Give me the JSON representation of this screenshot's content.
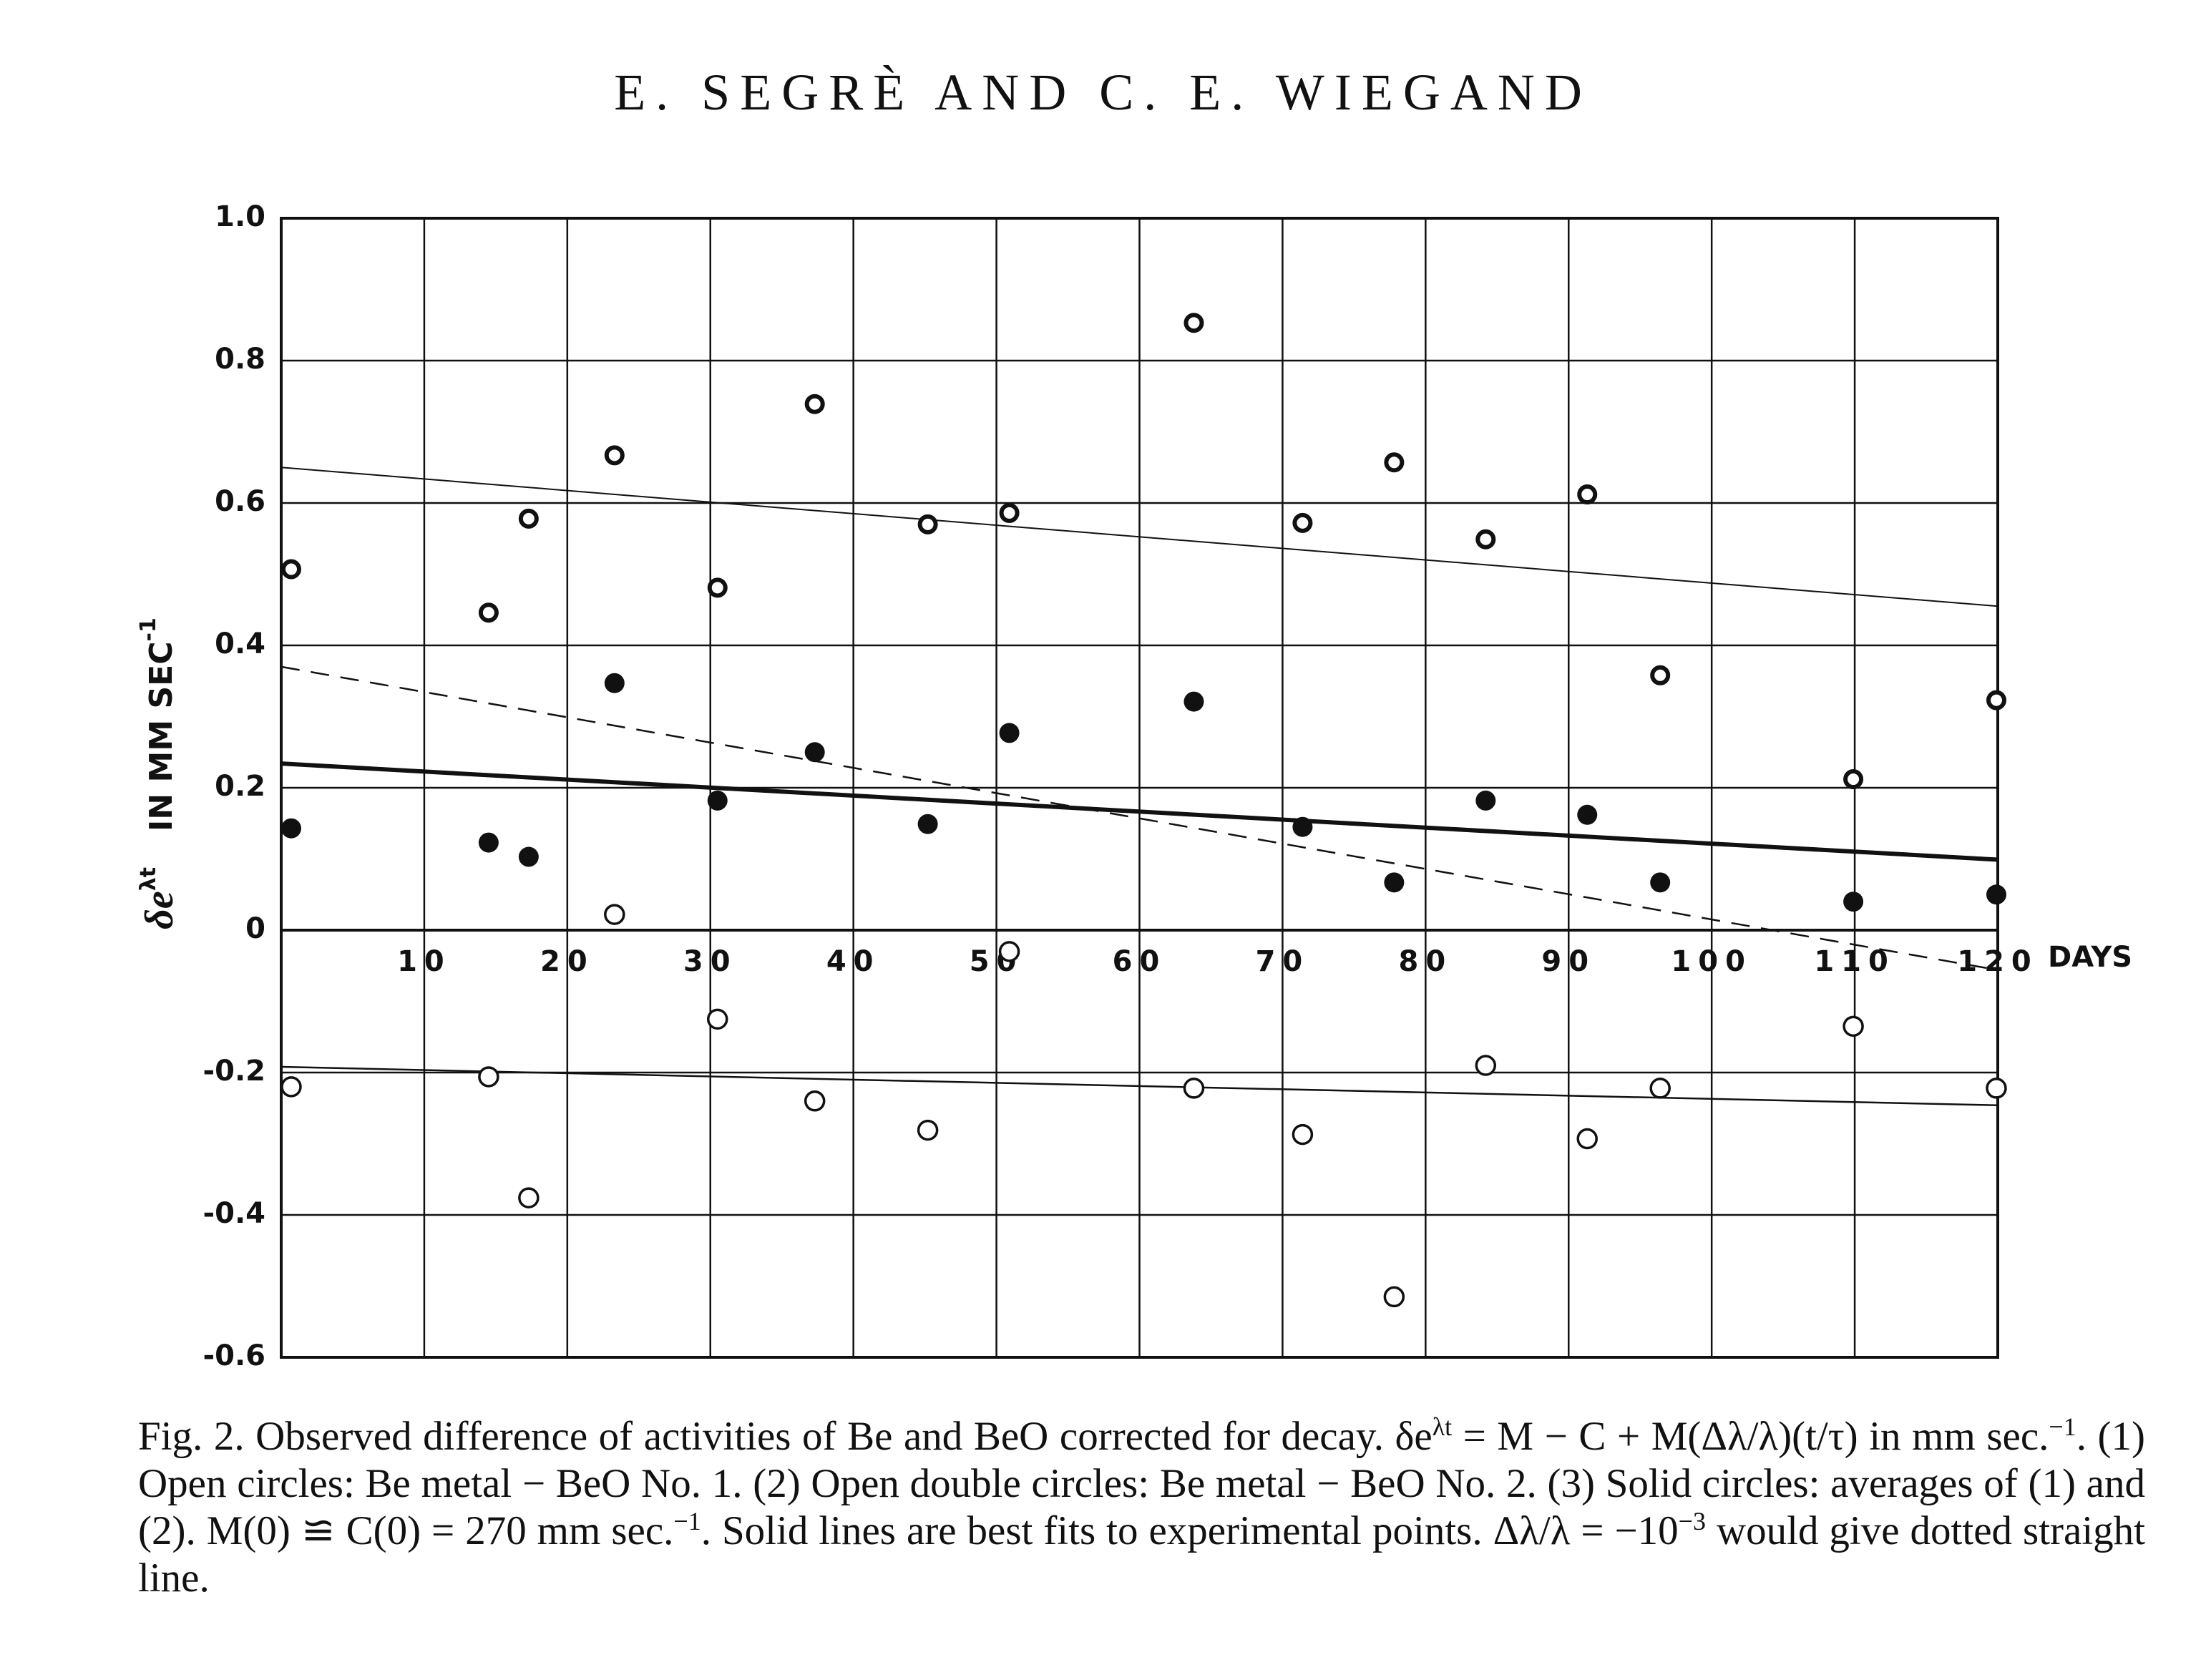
{
  "header": "E. SEGRÈ AND C. E. WIEGAND",
  "chart_data": {
    "type": "scatter",
    "xlabel": "DAYS",
    "ylabel": {
      "symbol": "δe",
      "symbol_sup": "λt",
      "units": "IN MM SEC",
      "units_sup": "-1"
    },
    "xlim": [
      0,
      120
    ],
    "ylim": [
      -0.6,
      1.0
    ],
    "xticks": [
      10,
      20,
      30,
      40,
      50,
      60,
      70,
      80,
      90,
      100,
      110,
      120
    ],
    "yticks": [
      -0.6,
      -0.4,
      -0.2,
      0,
      0.2,
      0.4,
      0.6,
      0.8,
      {
        "value": 1,
        "label": "1.0"
      }
    ],
    "grid": true,
    "series": [
      {
        "marker": "double",
        "color": "#111",
        "x": [
          0.7,
          14.5,
          17.3,
          23.3,
          30.5,
          37.3,
          45.2,
          50.9,
          63.8,
          71.4,
          77.8,
          84.2,
          91.3,
          96.4,
          109.9,
          119.9
        ],
        "values": [
          0.507,
          0.446,
          0.578,
          0.667,
          0.481,
          0.739,
          0.57,
          0.586,
          0.853,
          0.572,
          0.657,
          0.549,
          0.612,
          0.358,
          0.212,
          0.323
        ]
      },
      {
        "marker": "solid",
        "color": "#111",
        "x": [
          0.7,
          14.5,
          17.3,
          23.3,
          30.5,
          37.3,
          45.2,
          50.9,
          63.8,
          71.4,
          77.8,
          84.2,
          91.3,
          96.4,
          109.9,
          119.9
        ],
        "values": [
          0.143,
          0.123,
          0.103,
          0.347,
          0.182,
          0.25,
          0.149,
          0.277,
          0.321,
          0.145,
          0.067,
          0.182,
          0.162,
          0.067,
          0.04,
          0.05
        ]
      },
      {
        "marker": "open",
        "color": "#111",
        "x": [
          0.7,
          14.5,
          17.3,
          23.3,
          30.5,
          37.3,
          45.2,
          50.9,
          63.8,
          71.4,
          77.8,
          84.2,
          91.3,
          96.4,
          109.9,
          119.9
        ],
        "values": [
          -0.22,
          -0.206,
          -0.376,
          0.022,
          -0.125,
          -0.24,
          -0.281,
          -0.03,
          -0.222,
          -0.287,
          -0.515,
          -0.19,
          -0.293,
          -0.222,
          -0.135,
          -0.222
        ]
      },
      {
        "type": "line",
        "style": "solid",
        "width": 2,
        "color": "#111",
        "x": [
          0,
          120
        ],
        "values": [
          0.65,
          0.455
        ]
      },
      {
        "type": "line",
        "style": "solid",
        "width": 6,
        "color": "#111",
        "x": [
          0,
          120
        ],
        "values": [
          0.234,
          0.099
        ]
      },
      {
        "type": "line",
        "style": "dashed",
        "width": 2.5,
        "color": "#111",
        "x": [
          0,
          120
        ],
        "values": [
          0.37,
          -0.056
        ]
      },
      {
        "type": "line",
        "style": "solid",
        "width": 2.5,
        "color": "#111",
        "x": [
          0,
          120
        ],
        "values": [
          -0.192,
          -0.246
        ]
      }
    ]
  },
  "caption": [
    "Fig. 2. Observed difference of activities of Be and BeO corrected for decay. δe",
    "λt",
    " = M − C + M(Δλ/λ)(t/τ) in mm sec.",
    "−1",
    ". (1) Open circles: Be metal − BeO No. 1. (2) Open double circles: Be metal − BeO No. 2. (3) Solid circles: averages of (1) and (2). M(0) ≌ C(0) = 270 mm sec.",
    "−1",
    ". Solid lines are best fits to experimental points. Δλ/λ = −10",
    "−3",
    " would give dotted straight line."
  ]
}
